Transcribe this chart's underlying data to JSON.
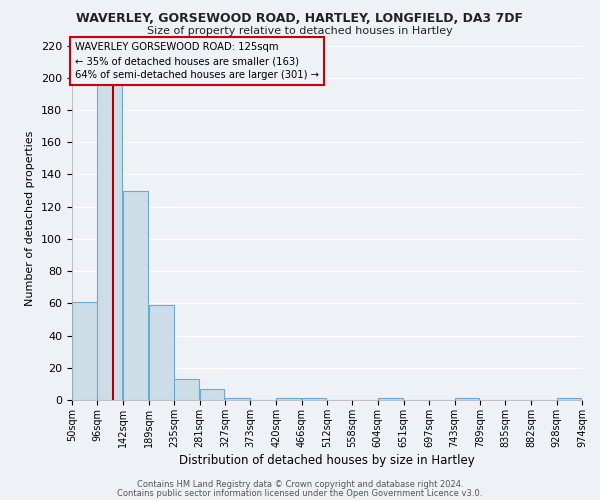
{
  "title": "WAVERLEY, GORSEWOOD ROAD, HARTLEY, LONGFIELD, DA3 7DF",
  "subtitle": "Size of property relative to detached houses in Hartley",
  "xlabel": "Distribution of detached houses by size in Hartley",
  "ylabel": "Number of detached properties",
  "footer1": "Contains HM Land Registry data © Crown copyright and database right 2024.",
  "footer2": "Contains public sector information licensed under the Open Government Licence v3.0.",
  "property_size": 125,
  "annotation_line1": "WAVERLEY GORSEWOOD ROAD: 125sqm",
  "annotation_line2": "← 35% of detached houses are smaller (163)",
  "annotation_line3": "64% of semi-detached houses are larger (301) →",
  "bar_color": "#ccdde8",
  "bar_edge_color": "#6aaad4",
  "vline_color": "#aa0000",
  "annotation_box_color": "#cc0000",
  "bins": [
    50,
    96,
    142,
    189,
    235,
    281,
    327,
    373,
    420,
    466,
    512,
    558,
    604,
    651,
    697,
    743,
    789,
    835,
    882,
    928,
    974
  ],
  "counts": [
    61,
    203,
    130,
    59,
    13,
    7,
    1,
    0,
    1,
    1,
    0,
    0,
    1,
    0,
    0,
    1,
    0,
    0,
    0,
    1
  ],
  "ylim": [
    0,
    225
  ],
  "yticks": [
    0,
    20,
    40,
    60,
    80,
    100,
    120,
    140,
    160,
    180,
    200,
    220
  ],
  "background_color": "#eef2f7",
  "grid_color": "#ffffff"
}
